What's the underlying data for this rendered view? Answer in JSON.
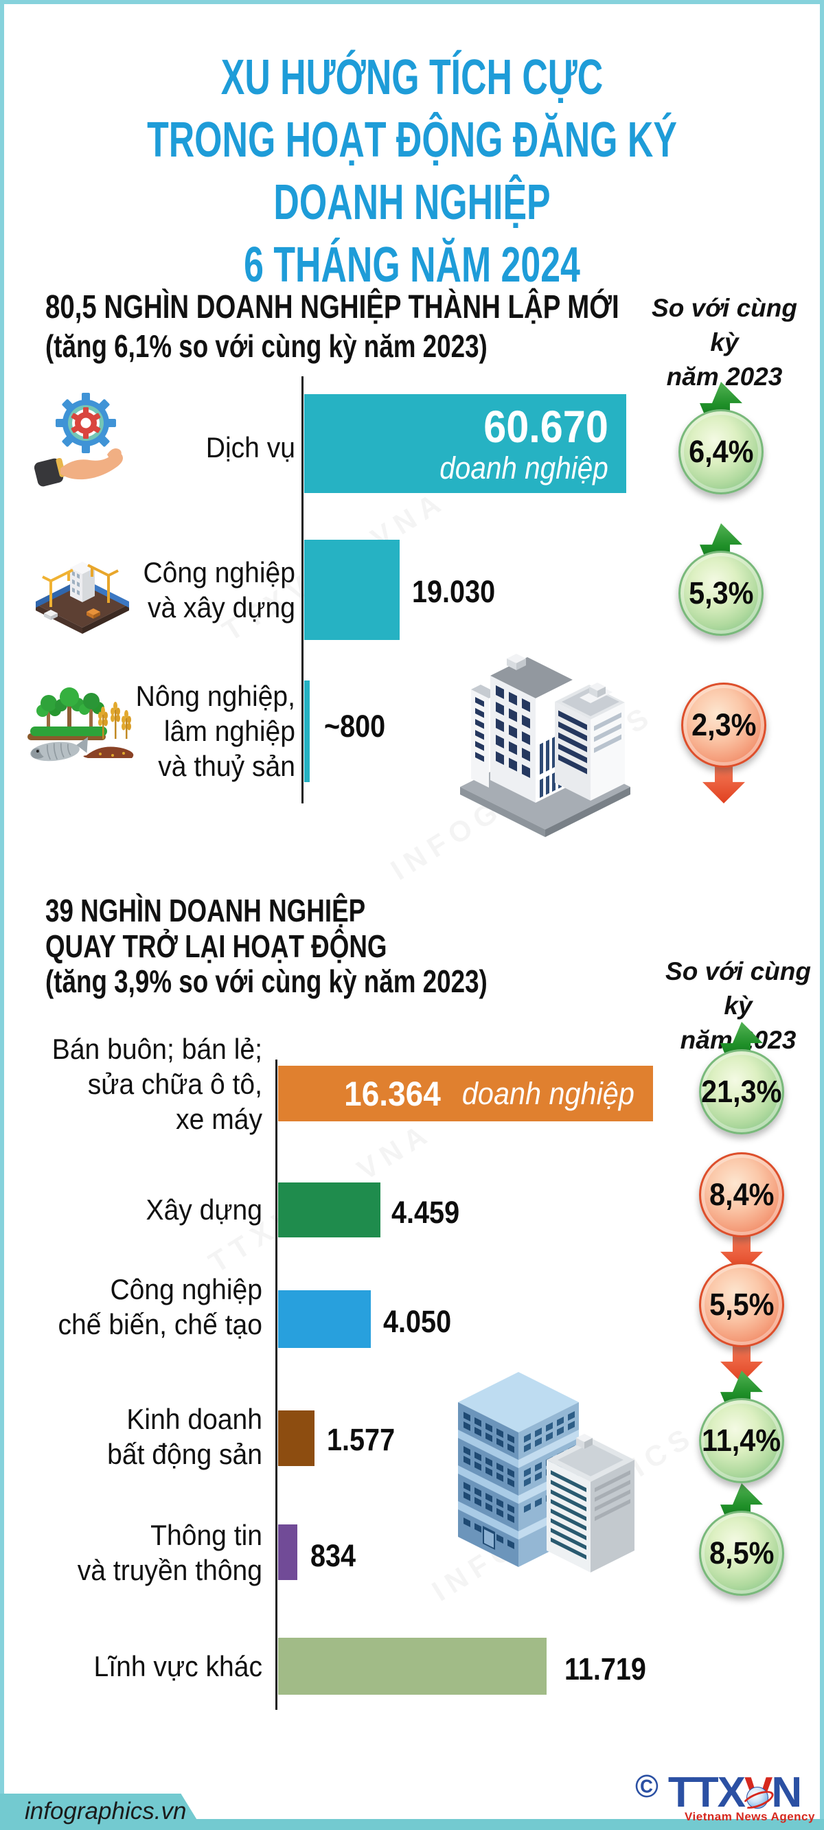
{
  "page": {
    "colors": {
      "title_blue": "#1e9cd8",
      "border": "#86d2dc",
      "banner_teal": "#73cad0",
      "axis": "#1c1c1c",
      "badge_up_green": "#1f8f28",
      "badge_down_red": "#e9633f",
      "logo_blue": "#2b50a3",
      "logo_red": "#d6281e"
    }
  },
  "title": {
    "lines": [
      "XU HƯỚNG TÍCH CỰC",
      "TRONG HOẠT ĐỘNG ĐĂNG KÝ DOANH NGHIỆP",
      "6 THÁNG NĂM 2024"
    ]
  },
  "watermarks": [
    "TTXVN - VNA",
    "INFOGRAPHICS"
  ],
  "section1": {
    "heading": "80,5 NGHÌN DOANH NGHIỆP THÀNH LẬP MỚI",
    "subheading": "(tăng 6,1% so với cùng kỳ năm 2023)",
    "compare_note": "So với cùng kỳ\nnăm 2023",
    "rows": [
      {
        "label": "Dịch vụ",
        "value": "60.670",
        "unit": "doanh nghiệp",
        "badge": "6,4%",
        "trend": "up",
        "color": "#26b2c3"
      },
      {
        "label": "Công nghiệp\nvà xây dựng",
        "value": "19.030",
        "badge": "5,3%",
        "trend": "up",
        "color": "#26b2c3"
      },
      {
        "label": "Nông nghiệp,\nlâm nghiệp\nvà thuỷ sản",
        "value": "~800",
        "badge": "2,3%",
        "trend": "down",
        "color": "#26b2c3"
      }
    ]
  },
  "section2": {
    "heading": "39 NGHÌN DOANH NGHIỆP\nQUAY TRỞ LẠI HOẠT ĐỘNG",
    "subheading": "(tăng 3,9% so với cùng kỳ năm 2023)",
    "compare_note": "So với cùng kỳ\nnăm 2023",
    "rows": [
      {
        "label": "Bán buôn; bán lẻ;\nsửa chữa ô tô,\nxe máy",
        "value": "16.364",
        "unit": "doanh nghiệp",
        "badge": "21,3%",
        "trend": "up",
        "color": "#e0802f"
      },
      {
        "label": "Xây dựng",
        "value": "4.459",
        "badge": "8,4%",
        "trend": "down",
        "color": "#1f8c4d"
      },
      {
        "label": "Công nghiệp\nchế biến, chế tạo",
        "value": "4.050",
        "badge": "5,5%",
        "trend": "down",
        "color": "#28a0dd"
      },
      {
        "label": "Kinh doanh\nbất động sản",
        "value": "1.577",
        "badge": "11,4%",
        "trend": "up",
        "color": "#8d4d10"
      },
      {
        "label": "Thông tin\nvà truyền thông",
        "value": "834",
        "badge": "8,5%",
        "trend": "up",
        "color": "#714b97"
      },
      {
        "label": "Lĩnh vực khác",
        "value": "11.719",
        "color": "#a1bb87"
      }
    ]
  },
  "footer": {
    "site": "infographics.vn",
    "copyright": "©",
    "logo_ttx": "TTX",
    "logo_v": "V",
    "logo_n": "N",
    "logo_sub": "Vietnam News Agency"
  },
  "chart_data": [
    {
      "type": "bar",
      "title": "80,5 nghìn doanh nghiệp thành lập mới (tăng 6,1% so với cùng kỳ năm 2023)",
      "orientation": "horizontal",
      "unit": "doanh nghiệp",
      "categories": [
        "Dịch vụ",
        "Công nghiệp và xây dựng",
        "Nông nghiệp, lâm nghiệp và thuỷ sản"
      ],
      "values": [
        60670,
        19030,
        800
      ],
      "value_labels": [
        "60.670",
        "19.030",
        "~800"
      ],
      "change_vs_same_period_2023_pct": [
        6.4,
        5.3,
        -2.3
      ],
      "legend_note": "So với cùng kỳ năm 2023"
    },
    {
      "type": "bar",
      "title": "39 nghìn doanh nghiệp quay trở lại hoạt động (tăng 3,9% so với cùng kỳ năm 2023)",
      "orientation": "horizontal",
      "unit": "doanh nghiệp",
      "categories": [
        "Bán buôn; bán lẻ; sửa chữa ô tô, xe máy",
        "Xây dựng",
        "Công nghiệp chế biến, chế tạo",
        "Kinh doanh bất động sản",
        "Thông tin và truyền thông",
        "Lĩnh vực khác"
      ],
      "values": [
        16364,
        4459,
        4050,
        1577,
        834,
        11719
      ],
      "value_labels": [
        "16.364",
        "4.459",
        "4.050",
        "1.577",
        "834",
        "11.719"
      ],
      "change_vs_same_period_2023_pct": [
        21.3,
        -8.4,
        -5.5,
        11.4,
        8.5,
        null
      ],
      "legend_note": "So với cùng kỳ năm 2023"
    }
  ]
}
